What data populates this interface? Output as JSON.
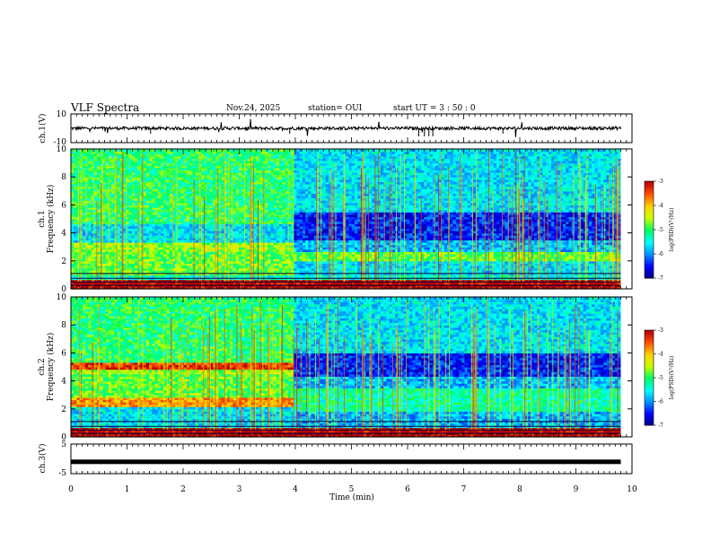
{
  "header": {
    "title": "VLF Spectra",
    "date": "Nov.24, 2025",
    "station": "station= OUI",
    "start_time": "start  UT =  3 : 50 : 0"
  },
  "chart_data": {
    "type": "heatmap",
    "x_axis": {
      "label": "Time  (min)",
      "range": [
        0,
        10
      ],
      "ticks": [
        "0",
        "1",
        "2",
        "3",
        "4",
        "5",
        "6",
        "7",
        "8",
        "9",
        "10"
      ]
    },
    "panels": [
      {
        "id": "ch1_waveform",
        "type": "line",
        "ylabel": "ch.1(V)",
        "ylim": [
          -10,
          10
        ],
        "yticks": [
          "10",
          "-10"
        ],
        "baseline": 0,
        "data_end_min": 9.8
      },
      {
        "id": "ch1_spectrogram",
        "type": "heatmap",
        "ylabel": "Frequency (kHz)",
        "channel_label": "ch.1",
        "ylim": [
          0,
          10
        ],
        "yticks": [
          "0",
          "2",
          "4",
          "6",
          "8",
          "10"
        ],
        "data_end_min": 9.8,
        "change_time_min": 3.95,
        "description_bands_khz_before": [
          [
            0.0,
            0.6,
            1.0
          ],
          [
            1.0,
            2.6,
            0.55
          ],
          [
            2.6,
            3.3,
            0.6
          ],
          [
            3.3,
            4.7,
            0.35
          ],
          [
            4.7,
            10.0,
            0.5
          ]
        ],
        "description_bands_khz_after": [
          [
            0.0,
            0.6,
            1.0
          ],
          [
            1.0,
            2.0,
            0.35
          ],
          [
            2.0,
            2.6,
            0.55
          ],
          [
            2.6,
            3.5,
            0.3
          ],
          [
            3.5,
            5.5,
            0.15
          ],
          [
            5.5,
            10.0,
            0.35
          ]
        ]
      },
      {
        "id": "ch2_spectrogram",
        "type": "heatmap",
        "ylabel": "Frequency (kHz)",
        "channel_label": "ch.2",
        "ylim": [
          0,
          10
        ],
        "yticks": [
          "0",
          "2",
          "4",
          "6",
          "8",
          "10"
        ],
        "data_end_min": 9.8,
        "change_time_min": 3.95,
        "description_bands_khz_before": [
          [
            0.0,
            0.6,
            1.0
          ],
          [
            0.6,
            2.2,
            0.35
          ],
          [
            2.2,
            2.8,
            0.8
          ],
          [
            2.8,
            4.5,
            0.55
          ],
          [
            4.5,
            4.8,
            0.6
          ],
          [
            4.8,
            5.3,
            0.92
          ],
          [
            5.3,
            10.0,
            0.5
          ]
        ],
        "description_bands_khz_after": [
          [
            0.0,
            0.6,
            1.0
          ],
          [
            0.6,
            1.8,
            0.3
          ],
          [
            1.8,
            3.5,
            0.45
          ],
          [
            3.5,
            4.3,
            0.3
          ],
          [
            4.3,
            6.0,
            0.15
          ],
          [
            6.0,
            10.0,
            0.35
          ]
        ]
      },
      {
        "id": "ch3_waveform",
        "type": "line",
        "ylabel": "ch.3(V)",
        "ylim": [
          -5,
          5
        ],
        "yticks": [
          "5",
          "0",
          "-5"
        ],
        "baseline": -1,
        "data_end_min": 9.8
      }
    ],
    "colorbars": [
      {
        "label": "log(PSD)(V²/Hz)",
        "range": [
          -7,
          -3
        ],
        "ticks": [
          "-3",
          "-4",
          "-5",
          "-6",
          "-7"
        ]
      },
      {
        "label": "log(PSD)(V²/Hz)",
        "range": [
          -7,
          -3
        ],
        "ticks": [
          "-3",
          "-4",
          "-5",
          "-6",
          "-7"
        ]
      }
    ],
    "colormap": [
      "#00007a",
      "#0000ff",
      "#0090ff",
      "#00ffff",
      "#00ff60",
      "#c8ff00",
      "#ffd000",
      "#ff5000",
      "#b40000"
    ]
  }
}
